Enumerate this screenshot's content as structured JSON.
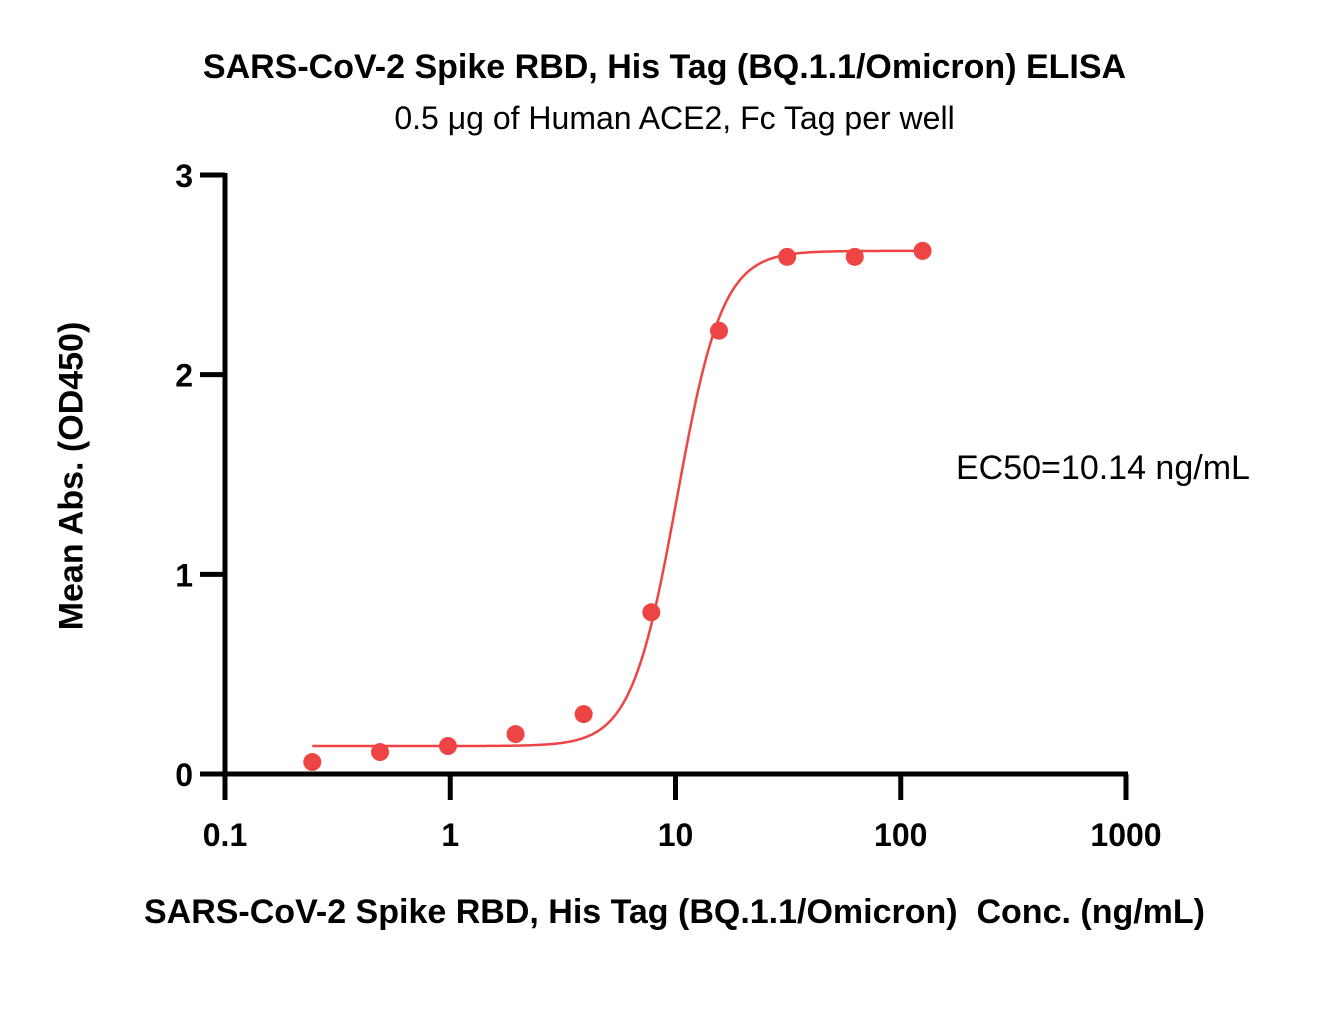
{
  "chart_data": {
    "type": "scatter",
    "title": "SARS-CoV-2 Spike RBD, His Tag (BQ.1.1/Omicron) ELISA",
    "subtitle": "0.5 μg of Human ACE2, Fc Tag per well",
    "xlabel": "SARS-CoV-2 Spike RBD, His Tag (BQ.1.1/Omicron)  Conc. (ng/mL)",
    "ylabel": "Mean Abs. (OD450)",
    "x_scale": "log",
    "xlim": [
      0.1,
      1000
    ],
    "ylim": [
      0,
      3
    ],
    "x_ticks": [
      0.1,
      1,
      10,
      100,
      1000
    ],
    "x_tick_labels": [
      "0.1",
      "1",
      "10",
      "100",
      "1000"
    ],
    "y_ticks": [
      0,
      1,
      2,
      3
    ],
    "y_tick_labels": [
      "0",
      "1",
      "2",
      "3"
    ],
    "points": {
      "x": [
        0.244,
        0.488,
        0.977,
        1.95,
        3.91,
        7.81,
        15.6,
        31.3,
        62.5,
        125
      ],
      "y": [
        0.06,
        0.11,
        0.14,
        0.2,
        0.3,
        0.81,
        2.22,
        2.59,
        2.59,
        2.62
      ]
    },
    "fit": {
      "model": "4PL",
      "bottom": 0.14,
      "top": 2.62,
      "ec50": 10.14,
      "hill": 4.3,
      "x_range": [
        0.244,
        125
      ]
    },
    "annotation": "EC50=10.14 ng/mL",
    "color": "#EF4444",
    "grid": false,
    "legend": "none"
  }
}
